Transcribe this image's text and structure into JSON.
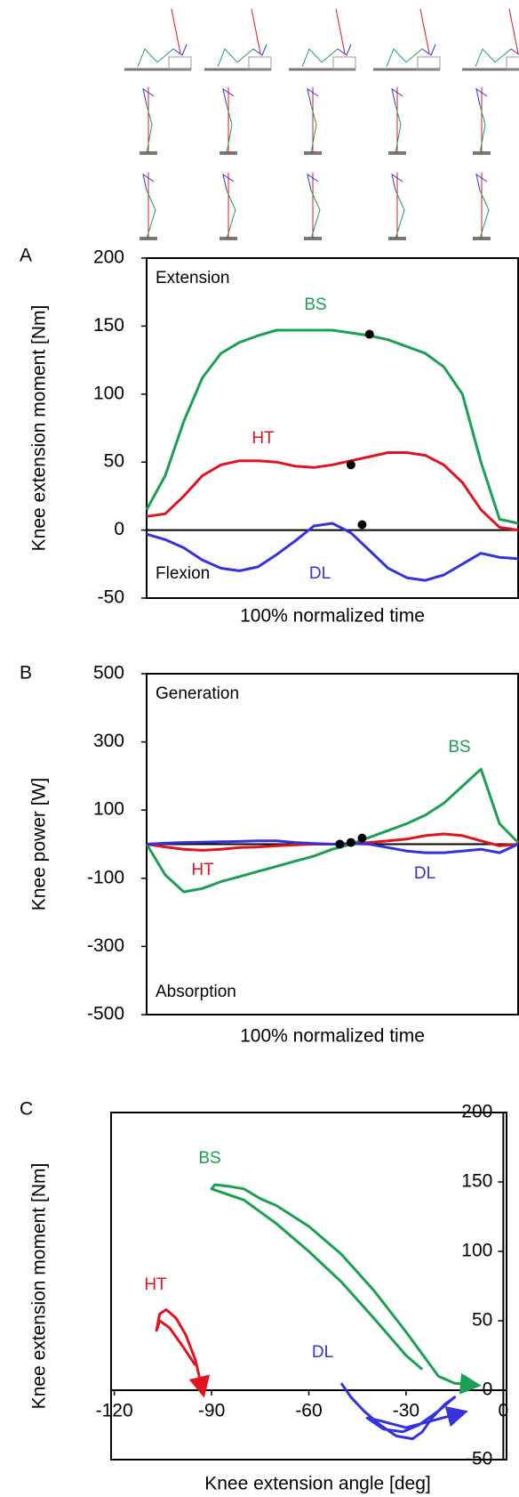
{
  "chart_data": [
    {
      "type": "line",
      "panel": "A",
      "ylabel": "Knee extension moment  [Nm]",
      "xlabel": "100% normalized time",
      "annotations": [
        "Extension",
        "Flexion"
      ],
      "ylim": [
        -50,
        200
      ],
      "yticks": [
        200,
        150,
        100,
        50,
        0,
        -50
      ],
      "xlim": [
        0,
        100
      ],
      "x": [
        0,
        5,
        10,
        15,
        20,
        25,
        30,
        35,
        40,
        45,
        50,
        55,
        60,
        65,
        70,
        75,
        80,
        85,
        90,
        95,
        100
      ],
      "series": [
        {
          "name": "BS",
          "color": "#1aa052",
          "values": [
            15,
            40,
            80,
            112,
            130,
            138,
            143,
            147,
            147,
            147,
            147,
            145,
            143,
            140,
            135,
            130,
            120,
            100,
            50,
            8,
            5
          ]
        },
        {
          "name": "HT",
          "color": "#e0141e",
          "values": [
            10,
            12,
            25,
            40,
            48,
            51,
            51,
            50,
            47,
            46,
            48,
            51,
            54,
            57,
            57,
            55,
            48,
            35,
            15,
            2,
            0
          ]
        },
        {
          "name": "DL",
          "color": "#3333dd",
          "values": [
            -3,
            -7,
            -13,
            -22,
            -28,
            -30,
            -27,
            -18,
            -8,
            3,
            5,
            -2,
            -15,
            -28,
            -35,
            -37,
            -33,
            -25,
            -17,
            -20,
            -21
          ]
        }
      ],
      "markers": {
        "x": [
          60,
          55,
          58
        ],
        "values": [
          144,
          48,
          4
        ]
      }
    },
    {
      "type": "line",
      "panel": "B",
      "ylabel": "Knee power [W]",
      "xlabel": "100% normalized time",
      "annotations": [
        "Generation",
        "Absorption"
      ],
      "ylim": [
        -500,
        500
      ],
      "yticks": [
        500,
        300,
        100,
        -100,
        -300,
        -500
      ],
      "xlim": [
        0,
        100
      ],
      "x": [
        0,
        5,
        10,
        15,
        20,
        25,
        30,
        35,
        40,
        45,
        50,
        55,
        60,
        65,
        70,
        75,
        80,
        85,
        90,
        95,
        100
      ],
      "series": [
        {
          "name": "BS",
          "color": "#1aa052",
          "values": [
            0,
            -90,
            -140,
            -130,
            -110,
            -95,
            -80,
            -65,
            -50,
            -35,
            -15,
            0,
            20,
            40,
            60,
            85,
            120,
            170,
            220,
            60,
            5
          ]
        },
        {
          "name": "HT",
          "color": "#e0141e",
          "values": [
            0,
            -8,
            -15,
            -18,
            -15,
            -10,
            -8,
            -5,
            -2,
            0,
            0,
            2,
            5,
            10,
            15,
            25,
            30,
            25,
            10,
            -5,
            0
          ]
        },
        {
          "name": "DL",
          "color": "#3333dd",
          "values": [
            0,
            3,
            5,
            6,
            7,
            8,
            10,
            10,
            5,
            2,
            0,
            2,
            0,
            -10,
            -20,
            -25,
            -25,
            -20,
            -15,
            -25,
            0
          ]
        }
      ],
      "markers": {
        "x": [
          52,
          55,
          58
        ],
        "values": [
          0,
          5,
          18
        ]
      }
    },
    {
      "type": "loop",
      "panel": "C",
      "ylabel": "Knee extension moment  [Nm]",
      "xlabel": "Knee extension angle [deg]",
      "xlim": [
        -121,
        1
      ],
      "xticks": [
        -120,
        -90,
        -60,
        -30,
        0
      ],
      "ylim": [
        -50,
        200
      ],
      "yticks": [
        200,
        150,
        100,
        50,
        0,
        -50
      ],
      "series": [
        {
          "name": "BS",
          "color": "#1aa052",
          "x": [
            -25,
            -30,
            -40,
            -50,
            -60,
            -70,
            -80,
            -90,
            -89,
            -85,
            -80,
            -75,
            -70,
            -60,
            -50,
            -40,
            -30,
            -20,
            -15,
            -10
          ],
          "values": [
            15,
            25,
            52,
            78,
            100,
            120,
            137,
            145,
            148,
            147,
            145,
            138,
            133,
            118,
            98,
            72,
            42,
            10,
            5,
            4
          ]
        },
        {
          "name": "HT",
          "color": "#e0141e",
          "x": [
            -95,
            -99,
            -103,
            -106,
            -107,
            -106,
            -104,
            -101,
            -98,
            -95,
            -93
          ],
          "values": [
            18,
            32,
            45,
            50,
            43,
            55,
            58,
            52,
            40,
            22,
            2
          ]
        },
        {
          "name": "DL",
          "color": "#3333dd",
          "x": [
            -50,
            -47,
            -43,
            -38,
            -33,
            -28,
            -25,
            -22,
            -18,
            -15,
            -20,
            -26,
            -31,
            -37,
            -42,
            -38,
            -30,
            -22,
            -14
          ],
          "values": [
            5,
            -5,
            -15,
            -25,
            -33,
            -35,
            -30,
            -20,
            -10,
            -5,
            -15,
            -25,
            -30,
            -28,
            -20,
            -22,
            -27,
            -22,
            -17
          ]
        }
      ]
    }
  ]
}
